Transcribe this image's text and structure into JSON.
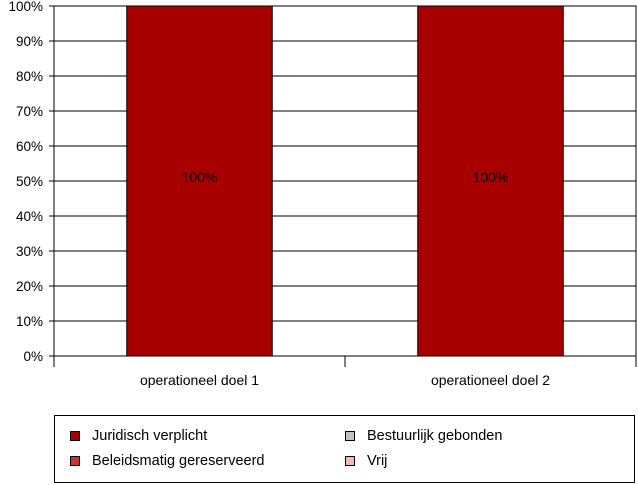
{
  "chart_data": {
    "type": "bar",
    "stacked": true,
    "categories": [
      "operationeel doel 1",
      "operationeel doel 2"
    ],
    "series": [
      {
        "name": "Juridisch verplicht",
        "values": [
          100,
          100
        ],
        "color": "#a80000"
      },
      {
        "name": "Beleidsmatig gereserveerd",
        "values": [
          0,
          0
        ],
        "color": "#cc3333"
      },
      {
        "name": "Bestuurlijk gebonden",
        "values": [
          0,
          0
        ],
        "color": "#c0c0c0"
      },
      {
        "name": "Vrij",
        "values": [
          0,
          0
        ],
        "color": "#f4b8b8"
      }
    ],
    "data_labels": [
      "100%",
      "100%"
    ],
    "yticks": [
      "0%",
      "10%",
      "20%",
      "30%",
      "40%",
      "50%",
      "60%",
      "70%",
      "80%",
      "90%",
      "100%"
    ],
    "ylim": [
      0,
      100
    ],
    "grid": true,
    "legend_position": "bottom"
  }
}
